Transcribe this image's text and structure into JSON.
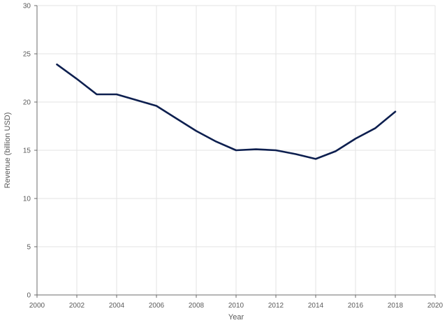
{
  "chart_data": {
    "type": "line",
    "title": "",
    "xlabel": "Year",
    "ylabel": "Revenue (billion USD)",
    "xlim": [
      2000,
      2020
    ],
    "ylim": [
      0,
      30
    ],
    "x_ticks": [
      2000,
      2002,
      2004,
      2006,
      2008,
      2010,
      2012,
      2014,
      2016,
      2018,
      2020
    ],
    "y_ticks": [
      0,
      5,
      10,
      15,
      20,
      25,
      30
    ],
    "grid": true,
    "legend": "none",
    "series": [
      {
        "color": "#0d1f4f",
        "x": [
          2001,
          2002,
          2003,
          2004,
          2005,
          2006,
          2007,
          2008,
          2009,
          2010,
          2011,
          2012,
          2013,
          2014,
          2015,
          2016,
          2017,
          2018
        ],
        "y": [
          23.9,
          22.4,
          20.8,
          20.8,
          20.2,
          19.6,
          18.3,
          17.0,
          15.9,
          15.0,
          15.1,
          15.0,
          14.6,
          14.1,
          14.9,
          16.2,
          17.3,
          19.0
        ]
      }
    ]
  }
}
